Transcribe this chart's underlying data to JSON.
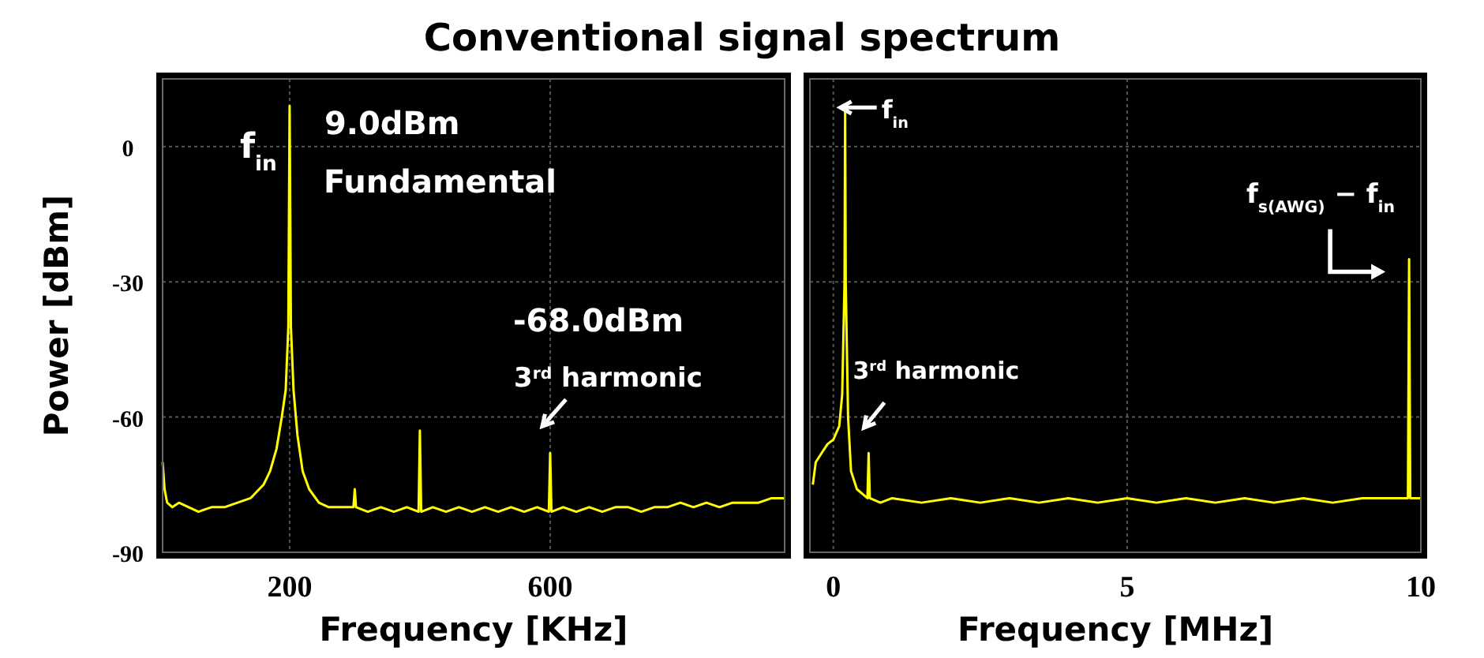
{
  "chart_data": [
    {
      "type": "line",
      "title": "Conventional signal spectrum",
      "xlabel": "Frequency [KHz]",
      "ylabel": "Power [dBm]",
      "series": [
        {
          "color": "#ffff00",
          "x": [
            5,
            8,
            12,
            20,
            30,
            45,
            60,
            80,
            100,
            120,
            140,
            160,
            170,
            180,
            188,
            194,
            198,
            199,
            200,
            201,
            202,
            206,
            212,
            220,
            230,
            245,
            260,
            280,
            298,
            300,
            302,
            320,
            340,
            360,
            380,
            398,
            400,
            402,
            420,
            440,
            460,
            480,
            500,
            520,
            540,
            560,
            580,
            598,
            600,
            602,
            620,
            640,
            660,
            680,
            700,
            720,
            740,
            760,
            780,
            800,
            820,
            840,
            860,
            880,
            900,
            920,
            940,
            960
          ],
          "values": [
            -70,
            -76,
            -79,
            -80,
            -79,
            -80,
            -81,
            -80,
            -80,
            -79,
            -78,
            -75,
            -72,
            -67,
            -60,
            -54,
            -40,
            -15,
            9,
            -15,
            -40,
            -54,
            -64,
            -72,
            -76,
            -79,
            -80,
            -80,
            -80,
            -76,
            -80,
            -81,
            -80,
            -81,
            -80,
            -81,
            -63,
            -81,
            -80,
            -81,
            -80,
            -81,
            -80,
            -81,
            -80,
            -81,
            -80,
            -81,
            -68,
            -81,
            -80,
            -81,
            -80,
            -81,
            -80,
            -80,
            -81,
            -80,
            -80,
            -79,
            -80,
            -79,
            -80,
            -79,
            -79,
            -79,
            -78,
            -78
          ]
        }
      ],
      "xlim": [
        5,
        960
      ],
      "xticks": [
        200,
        600
      ],
      "ylim": [
        -90,
        15
      ],
      "yticks": [
        0,
        -30,
        -60,
        -90
      ],
      "grid": true,
      "annotations": [
        {
          "text": "f$_{in}$",
          "x": 200,
          "y": 9
        },
        {
          "text": "9.0dBm",
          "x": 200,
          "y": 9
        },
        "Fundamental",
        "-68.0dBm",
        {
          "text": "3$^{rd}$ harmonic",
          "x": 600,
          "y": -68
        }
      ]
    },
    {
      "type": "line",
      "xlabel": "Frequency [MHz]",
      "series": [
        {
          "color": "#ffff00",
          "x": [
            -0.35,
            -0.3,
            -0.2,
            -0.1,
            0,
            0.1,
            0.15,
            0.19,
            0.2,
            0.21,
            0.25,
            0.3,
            0.4,
            0.58,
            0.6,
            0.62,
            0.8,
            1,
            1.5,
            2,
            2.5,
            3,
            3.5,
            4,
            4.5,
            5,
            5.5,
            6,
            6.5,
            7,
            7.5,
            8,
            8.5,
            9,
            9.5,
            9.78,
            9.8,
            9.82,
            9.9,
            10
          ],
          "values": [
            -75,
            -70,
            -68,
            -66,
            -65,
            -62,
            -55,
            -30,
            9,
            -30,
            -60,
            -72,
            -76,
            -78,
            -68,
            -78,
            -79,
            -78,
            -79,
            -78,
            -79,
            -78,
            -79,
            -78,
            -79,
            -78,
            -79,
            -78,
            -79,
            -78,
            -79,
            -78,
            -79,
            -78,
            -78,
            -78,
            -25,
            -78,
            -78,
            -78
          ]
        }
      ],
      "xlim": [
        -0.4,
        10
      ],
      "xticks": [
        0,
        5,
        10
      ],
      "ylim": [
        -90,
        15
      ],
      "yticks": [
        0,
        -30,
        -60,
        -90
      ],
      "grid": true,
      "tick_labels": "x",
      "annotations": [
        {
          "text": "f$_{in}$",
          "x": 0.2,
          "y": 9
        },
        {
          "text": "3$^{rd}$ harmonic",
          "x": 0.6,
          "y": -68
        },
        {
          "text": "f$_{s(AWG)}$ − f$_{in}$",
          "x": 9.8,
          "y": -25
        }
      ]
    }
  ]
}
